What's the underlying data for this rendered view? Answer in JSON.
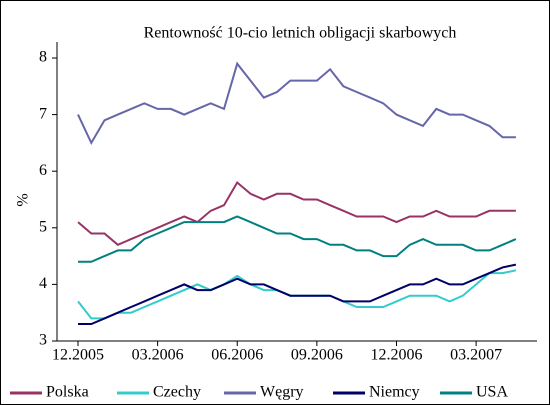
{
  "chart_data": {
    "type": "line",
    "title": "Rentowność 10-cio letnich obligacji skarbowych",
    "y_label": "%",
    "categories": [
      "12.2005",
      null,
      null,
      null,
      null,
      null,
      "03.2006",
      null,
      null,
      null,
      null,
      null,
      "06.2006",
      null,
      null,
      null,
      null,
      null,
      "09.2006",
      null,
      null,
      null,
      null,
      null,
      "12.2006",
      null,
      null,
      null,
      null,
      null,
      "03.2007",
      null,
      null,
      null
    ],
    "series": [
      {
        "name": "Polska",
        "color": "#993366",
        "values": [
          5.1,
          4.9,
          4.9,
          4.7,
          4.8,
          4.9,
          5.0,
          5.1,
          5.2,
          5.1,
          5.3,
          5.4,
          5.8,
          5.6,
          5.5,
          5.6,
          5.6,
          5.5,
          5.5,
          5.4,
          5.3,
          5.2,
          5.2,
          5.2,
          5.1,
          5.2,
          5.2,
          5.3,
          5.2,
          5.2,
          5.2,
          5.3,
          5.3,
          5.3
        ]
      },
      {
        "name": "Czechy",
        "color": "#33cccc",
        "values": [
          3.7,
          3.4,
          3.4,
          3.5,
          3.5,
          3.6,
          3.7,
          3.8,
          3.9,
          4.0,
          3.9,
          4.0,
          4.15,
          4.0,
          3.9,
          3.9,
          3.8,
          3.8,
          3.8,
          3.8,
          3.7,
          3.6,
          3.6,
          3.6,
          3.7,
          3.8,
          3.8,
          3.8,
          3.7,
          3.8,
          4.0,
          4.2,
          4.2,
          4.25
        ]
      },
      {
        "name": "Węgry",
        "color": "#6666aa",
        "values": [
          7.0,
          6.5,
          6.9,
          7.0,
          7.1,
          7.2,
          7.1,
          7.1,
          7.0,
          7.1,
          7.2,
          7.1,
          7.9,
          7.6,
          7.3,
          7.4,
          7.6,
          7.6,
          7.6,
          7.8,
          7.5,
          7.4,
          7.3,
          7.2,
          7.0,
          6.9,
          6.8,
          7.1,
          7.0,
          7.0,
          6.9,
          6.8,
          6.6,
          6.6
        ]
      },
      {
        "name": "Niemcy",
        "color": "#000066",
        "values": [
          3.3,
          3.3,
          3.4,
          3.5,
          3.6,
          3.7,
          3.8,
          3.9,
          4.0,
          3.9,
          3.9,
          4.0,
          4.1,
          4.0,
          4.0,
          3.9,
          3.8,
          3.8,
          3.8,
          3.8,
          3.7,
          3.7,
          3.7,
          3.8,
          3.9,
          4.0,
          4.0,
          4.1,
          4.0,
          4.0,
          4.1,
          4.2,
          4.3,
          4.35
        ]
      },
      {
        "name": "USA",
        "color": "#008080",
        "values": [
          4.4,
          4.4,
          4.5,
          4.6,
          4.6,
          4.8,
          4.9,
          5.0,
          5.1,
          5.1,
          5.1,
          5.1,
          5.2,
          5.1,
          5.0,
          4.9,
          4.9,
          4.8,
          4.8,
          4.7,
          4.7,
          4.6,
          4.6,
          4.5,
          4.5,
          4.7,
          4.8,
          4.7,
          4.7,
          4.7,
          4.6,
          4.6,
          4.7,
          4.8
        ]
      }
    ],
    "ylim": [
      3,
      8
    ],
    "yticks": [
      3,
      4,
      5,
      6,
      7,
      8
    ],
    "legend": "bottom"
  }
}
